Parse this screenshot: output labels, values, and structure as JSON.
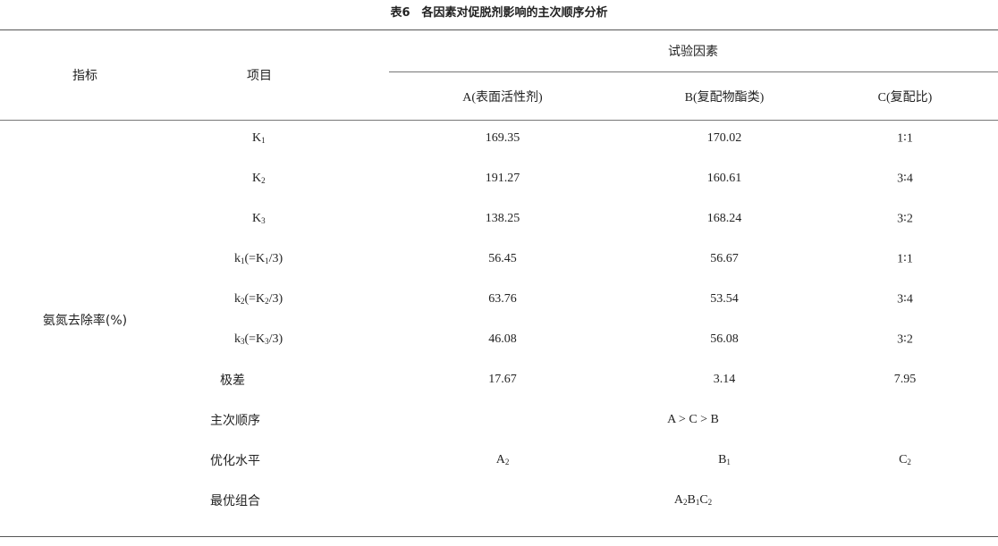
{
  "title": "表6　各因素对促脱剂影响的主次顺序分析",
  "header": {
    "indicator": "指标",
    "item": "项目",
    "factor_group": "试验因素",
    "factors": [
      "A(表面活性剂)",
      "B(复配物酯类)",
      "C(复配比)"
    ]
  },
  "indicator_value": "氨氮去除率(%)",
  "rows": [
    {
      "item": [
        {
          "t": "K"
        },
        {
          "t": "1",
          "sub": true
        }
      ],
      "a": [
        {
          "t": "169.35"
        }
      ],
      "b": [
        {
          "t": "170.02"
        }
      ],
      "c": [
        {
          "t": "1∶1"
        }
      ]
    },
    {
      "item": [
        {
          "t": "K"
        },
        {
          "t": "2",
          "sub": true
        }
      ],
      "a": [
        {
          "t": "191.27"
        }
      ],
      "b": [
        {
          "t": "160.61"
        }
      ],
      "c": [
        {
          "t": "3∶4"
        }
      ]
    },
    {
      "item": [
        {
          "t": "K"
        },
        {
          "t": "3",
          "sub": true
        }
      ],
      "a": [
        {
          "t": "138.25"
        }
      ],
      "b": [
        {
          "t": "168.24"
        }
      ],
      "c": [
        {
          "t": "3∶2"
        }
      ]
    },
    {
      "item": [
        {
          "t": "k"
        },
        {
          "t": "1",
          "sub": true
        },
        {
          "t": "(=K"
        },
        {
          "t": "1",
          "sub": true
        },
        {
          "t": "/3)"
        }
      ],
      "a": [
        {
          "t": "56.45"
        }
      ],
      "b": [
        {
          "t": "56.67"
        }
      ],
      "c": [
        {
          "t": "1∶1"
        }
      ]
    },
    {
      "item": [
        {
          "t": "k"
        },
        {
          "t": "2",
          "sub": true
        },
        {
          "t": "(=K"
        },
        {
          "t": "2",
          "sub": true
        },
        {
          "t": "/3)"
        }
      ],
      "a": [
        {
          "t": "63.76"
        }
      ],
      "b": [
        {
          "t": "53.54"
        }
      ],
      "c": [
        {
          "t": "3∶4"
        }
      ]
    },
    {
      "item": [
        {
          "t": "k"
        },
        {
          "t": "3",
          "sub": true
        },
        {
          "t": "(=K"
        },
        {
          "t": "3",
          "sub": true
        },
        {
          "t": "/3)"
        }
      ],
      "a": [
        {
          "t": "46.08"
        }
      ],
      "b": [
        {
          "t": "56.08"
        }
      ],
      "c": [
        {
          "t": "3∶2"
        }
      ]
    },
    {
      "item": [
        {
          "t": "极差"
        }
      ],
      "a": [
        {
          "t": "17.67"
        }
      ],
      "b": [
        {
          "t": "3.14"
        }
      ],
      "c": [
        {
          "t": "7.95"
        }
      ]
    },
    {
      "item": [
        {
          "t": "主次顺序"
        }
      ],
      "span": [
        {
          "t": "A > C > B"
        }
      ]
    },
    {
      "item": [
        {
          "t": "优化水平"
        }
      ],
      "a": [
        {
          "t": "A"
        },
        {
          "t": "2",
          "sub": true
        }
      ],
      "b": [
        {
          "t": "B"
        },
        {
          "t": "1",
          "sub": true
        }
      ],
      "c": [
        {
          "t": "C"
        },
        {
          "t": "2",
          "sub": true
        }
      ]
    },
    {
      "item": [
        {
          "t": "最优组合"
        }
      ],
      "span": [
        {
          "t": "A"
        },
        {
          "t": "2",
          "sub": true
        },
        {
          "t": "B"
        },
        {
          "t": "1",
          "sub": true
        },
        {
          "t": "C"
        },
        {
          "t": "2",
          "sub": true
        }
      ]
    }
  ]
}
